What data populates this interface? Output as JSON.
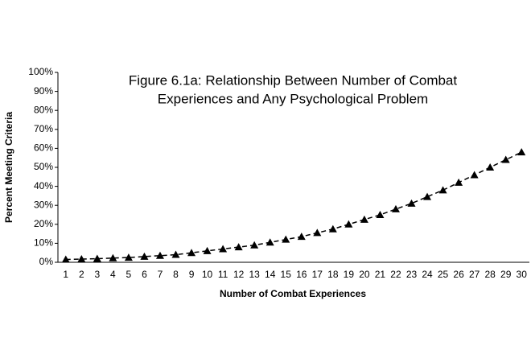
{
  "chart_data": {
    "type": "line",
    "title": [
      "Figure 6.1a: Relationship Between Number of Combat",
      "Experiences and Any Psychological Problem"
    ],
    "x_label": "Number of Combat Experiences",
    "y_label": "Percent Meeting Criteria",
    "categories": [
      1,
      2,
      3,
      4,
      5,
      6,
      7,
      8,
      9,
      10,
      11,
      12,
      13,
      14,
      15,
      16,
      17,
      18,
      19,
      20,
      21,
      22,
      23,
      24,
      25,
      26,
      27,
      28,
      29,
      30
    ],
    "series": [
      {
        "name": "Any Psychological Problem",
        "color": "#000000",
        "marker": "triangle",
        "dashed": true,
        "values": [
          1.5,
          1.7,
          1.9,
          2.2,
          2.5,
          3,
          3.5,
          4,
          5,
          6,
          7,
          8,
          9,
          10.5,
          12,
          13.5,
          15.5,
          17.5,
          20,
          22.5,
          25,
          28,
          31,
          34.5,
          38,
          42,
          46,
          50,
          54,
          58
        ]
      }
    ],
    "ylim": [
      0,
      100
    ],
    "yticks": [
      {
        "value": 0,
        "label": "0%"
      },
      {
        "value": 10,
        "label": "10%"
      },
      {
        "value": 20,
        "label": "20%"
      },
      {
        "value": 30,
        "label": "30%"
      },
      {
        "value": 40,
        "label": "40%"
      },
      {
        "value": 50,
        "label": "50%"
      },
      {
        "value": 60,
        "label": "60%"
      },
      {
        "value": 70,
        "label": "70%"
      },
      {
        "value": 80,
        "label": "80%"
      },
      {
        "value": 90,
        "label": "90%"
      },
      {
        "value": 100,
        "label": "100%"
      }
    ],
    "grid": false
  }
}
